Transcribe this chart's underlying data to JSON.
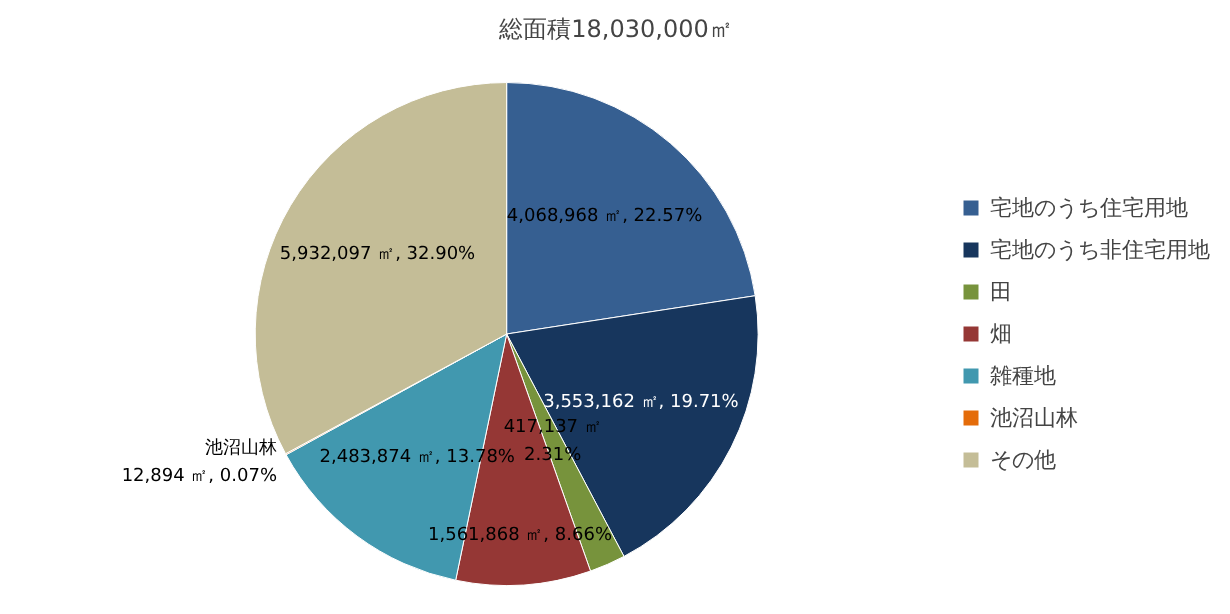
{
  "chart_data": {
    "type": "pie",
    "title": "総面積18,030,000㎡",
    "categories": [
      "宅地のうち住宅用地",
      "宅地のうち非住宅用地",
      "田",
      "畑",
      "雑種地",
      "池沼山林",
      "その他"
    ],
    "values": [
      4068968,
      3553162,
      417137,
      1561868,
      2483874,
      12894,
      5932097
    ],
    "colors": [
      "#365f91",
      "#17365d",
      "#77933c",
      "#953735",
      "#4198af",
      "#e46c0a",
      "#c4bd97"
    ],
    "value_labels": [
      "4,068,968 ㎡, 22.57%",
      "3,553,162 ㎡, 19.71%",
      "417,137 ㎡\n2.31%",
      "1,561,868 ㎡, 8.66%",
      "2,483,874 ㎡, 13.78%",
      "池沼山林\n12,894 ㎡, 0.07%",
      "5,932,097 ㎡, 32.90%"
    ],
    "legend": "right"
  }
}
